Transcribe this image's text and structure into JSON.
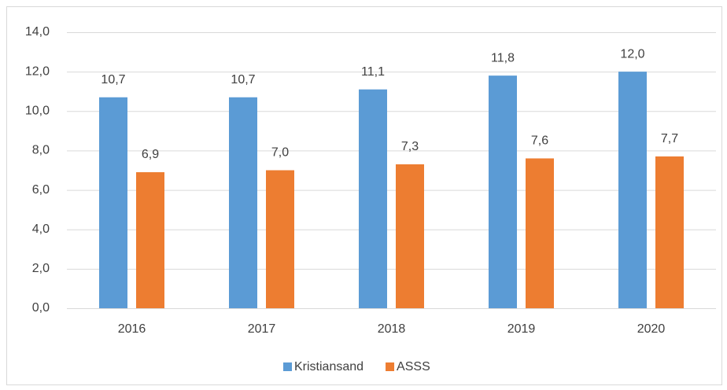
{
  "chart_data": {
    "type": "bar",
    "categories": [
      "2016",
      "2017",
      "2018",
      "2019",
      "2020"
    ],
    "series": [
      {
        "name": "Kristiansand",
        "color": "#5b9bd5",
        "values": [
          10.7,
          10.7,
          11.1,
          11.8,
          12.0
        ],
        "value_labels": [
          "10,7",
          "10,7",
          "11,1",
          "11,8",
          "12,0"
        ]
      },
      {
        "name": "ASSS",
        "color": "#ed7d31",
        "values": [
          6.9,
          7.0,
          7.3,
          7.6,
          7.7
        ],
        "value_labels": [
          "6,9",
          "7,0",
          "7,3",
          "7,6",
          "7,7"
        ]
      }
    ],
    "ylim": [
      0,
      14
    ],
    "yticks": [
      {
        "value": 0,
        "label": "0,0"
      },
      {
        "value": 2,
        "label": "2,0"
      },
      {
        "value": 4,
        "label": "4,0"
      },
      {
        "value": 6,
        "label": "6,0"
      },
      {
        "value": 8,
        "label": "8,0"
      },
      {
        "value": 10,
        "label": "10,0"
      },
      {
        "value": 12,
        "label": "12,0"
      },
      {
        "value": 14,
        "label": "14,0"
      }
    ],
    "grid": true,
    "legend": "bottom"
  }
}
